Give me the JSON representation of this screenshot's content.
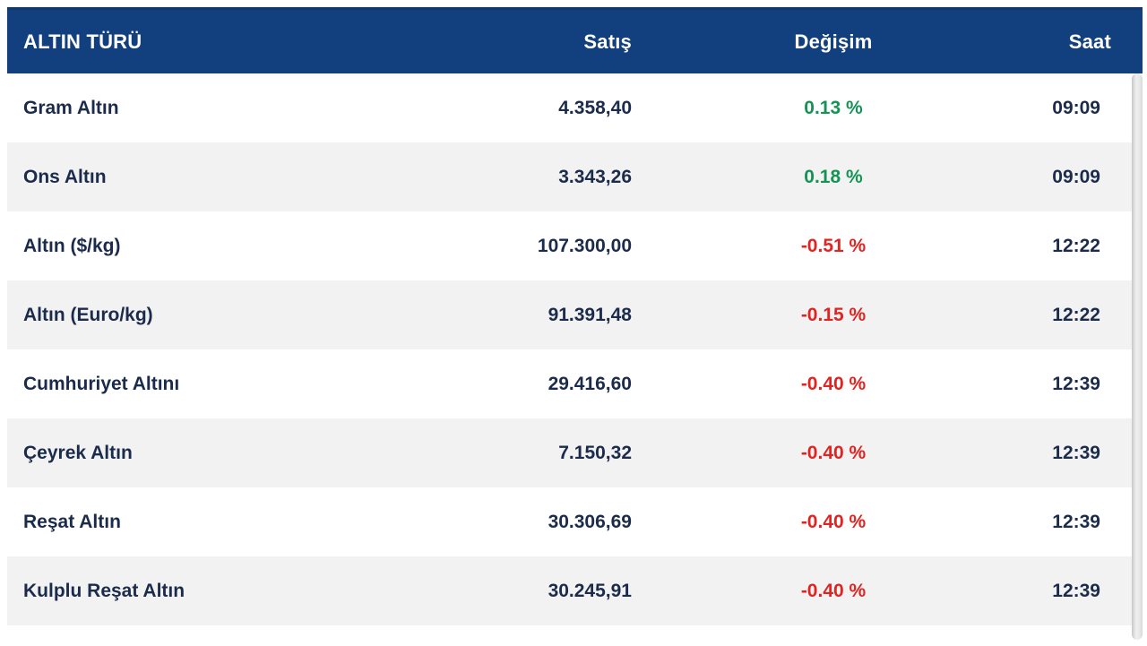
{
  "table": {
    "columns": [
      {
        "key": "name",
        "label": "ALTIN TÜRÜ"
      },
      {
        "key": "satis",
        "label": "Satış"
      },
      {
        "key": "degisim",
        "label": "Değişim"
      },
      {
        "key": "saat",
        "label": "Saat"
      }
    ],
    "rows": [
      {
        "name": "Gram Altın",
        "satis": "4.358,40",
        "degisim": "0.13 %",
        "direction": "up",
        "saat": "09:09"
      },
      {
        "name": "Ons Altın",
        "satis": "3.343,26",
        "degisim": "0.18 %",
        "direction": "up",
        "saat": "09:09"
      },
      {
        "name": "Altın ($/kg)",
        "satis": "107.300,00",
        "degisim": "-0.51 %",
        "direction": "down",
        "saat": "12:22"
      },
      {
        "name": "Altın (Euro/kg)",
        "satis": "91.391,48",
        "degisim": "-0.15 %",
        "direction": "down",
        "saat": "12:22"
      },
      {
        "name": "Cumhuriyet Altını",
        "satis": "29.416,60",
        "degisim": "-0.40 %",
        "direction": "down",
        "saat": "12:39"
      },
      {
        "name": "Çeyrek Altın",
        "satis": "7.150,32",
        "degisim": "-0.40 %",
        "direction": "down",
        "saat": "12:39"
      },
      {
        "name": "Reşat Altın",
        "satis": "30.306,69",
        "degisim": "-0.40 %",
        "direction": "down",
        "saat": "12:39"
      },
      {
        "name": "Kulplu Reşat Altın",
        "satis": "30.245,91",
        "degisim": "-0.40 %",
        "direction": "down",
        "saat": "12:39"
      }
    ]
  },
  "colors": {
    "header_bg": "#123f7e",
    "header_text": "#ffffff",
    "row_text": "#1b2b4b",
    "stripe": "#f2f2f2",
    "positive": "#149355",
    "negative": "#e02421",
    "scrollbar": "#dcdcdc"
  }
}
